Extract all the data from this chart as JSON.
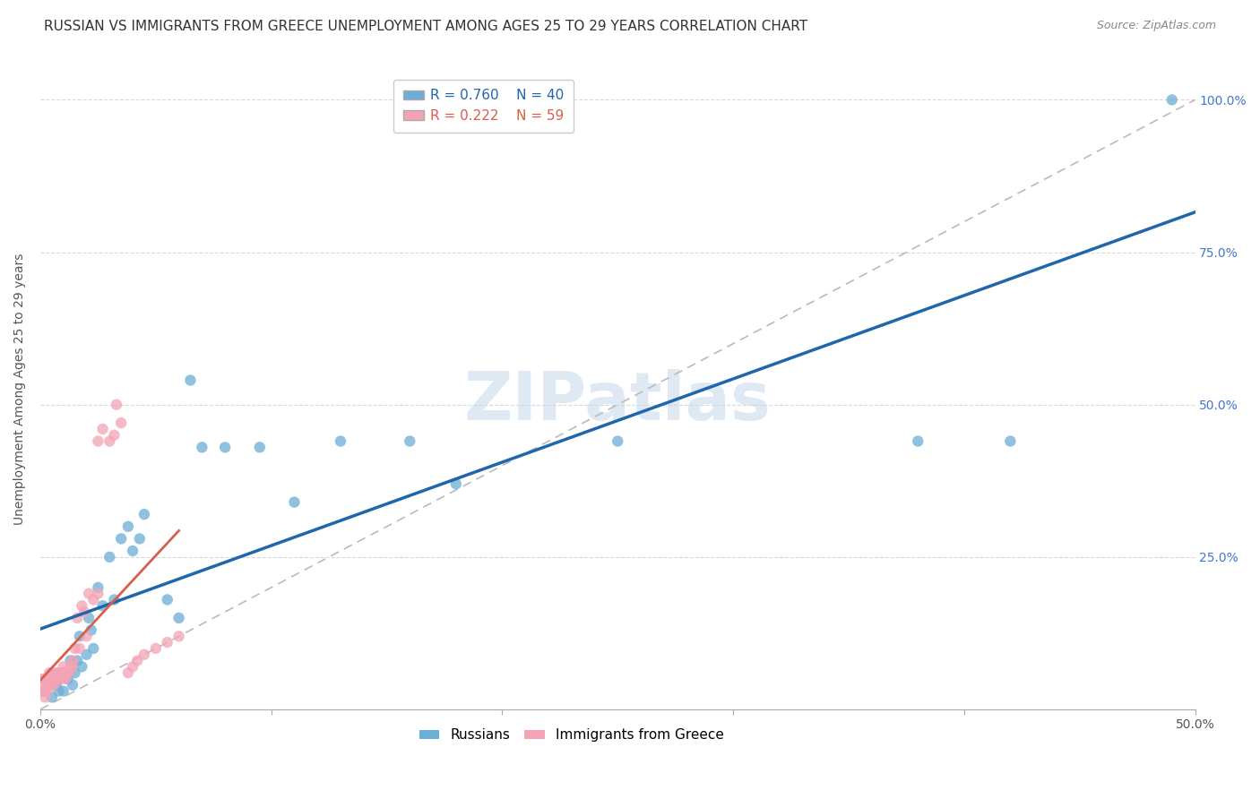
{
  "title": "RUSSIAN VS IMMIGRANTS FROM GREECE UNEMPLOYMENT AMONG AGES 25 TO 29 YEARS CORRELATION CHART",
  "source": "Source: ZipAtlas.com",
  "ylabel": "Unemployment Among Ages 25 to 29 years",
  "xlim": [
    0.0,
    0.5
  ],
  "ylim": [
    0.0,
    1.05
  ],
  "watermark": "ZIPatlas",
  "legend_r1": "R = 0.760",
  "legend_n1": "N = 40",
  "legend_r2": "R = 0.222",
  "legend_n2": "N = 59",
  "blue_color": "#6baed6",
  "pink_color": "#f4a3b5",
  "blue_line_color": "#2166ac",
  "pink_line_color": "#d6604d",
  "background_color": "#ffffff",
  "grid_color": "#d0d0d0",
  "russians_x": [
    0.003,
    0.005,
    0.007,
    0.008,
    0.01,
    0.01,
    0.012,
    0.013,
    0.014,
    0.015,
    0.016,
    0.017,
    0.018,
    0.02,
    0.021,
    0.022,
    0.023,
    0.025,
    0.027,
    0.03,
    0.032,
    0.035,
    0.038,
    0.04,
    0.043,
    0.045,
    0.055,
    0.06,
    0.065,
    0.07,
    0.08,
    0.095,
    0.11,
    0.13,
    0.16,
    0.18,
    0.25,
    0.38,
    0.42,
    0.49
  ],
  "russians_y": [
    0.05,
    0.02,
    0.04,
    0.03,
    0.06,
    0.03,
    0.05,
    0.08,
    0.04,
    0.06,
    0.08,
    0.12,
    0.07,
    0.09,
    0.15,
    0.13,
    0.1,
    0.2,
    0.17,
    0.25,
    0.18,
    0.28,
    0.3,
    0.26,
    0.28,
    0.32,
    0.18,
    0.15,
    0.54,
    0.43,
    0.43,
    0.43,
    0.34,
    0.44,
    0.44,
    0.37,
    0.44,
    0.44,
    0.44,
    1.0
  ],
  "greece_x": [
    0.001,
    0.001,
    0.001,
    0.001,
    0.002,
    0.002,
    0.002,
    0.002,
    0.003,
    0.003,
    0.003,
    0.004,
    0.004,
    0.005,
    0.005,
    0.005,
    0.006,
    0.006,
    0.006,
    0.007,
    0.007,
    0.007,
    0.008,
    0.008,
    0.008,
    0.009,
    0.009,
    0.01,
    0.01,
    0.01,
    0.011,
    0.011,
    0.012,
    0.012,
    0.013,
    0.014,
    0.014,
    0.015,
    0.016,
    0.017,
    0.018,
    0.019,
    0.02,
    0.021,
    0.023,
    0.025,
    0.025,
    0.027,
    0.03,
    0.032,
    0.033,
    0.035,
    0.038,
    0.04,
    0.042,
    0.045,
    0.05,
    0.055,
    0.06
  ],
  "greece_y": [
    0.03,
    0.04,
    0.03,
    0.05,
    0.03,
    0.02,
    0.05,
    0.03,
    0.03,
    0.05,
    0.04,
    0.06,
    0.04,
    0.04,
    0.05,
    0.06,
    0.04,
    0.05,
    0.05,
    0.05,
    0.06,
    0.05,
    0.06,
    0.05,
    0.06,
    0.05,
    0.06,
    0.06,
    0.06,
    0.07,
    0.06,
    0.05,
    0.06,
    0.06,
    0.07,
    0.08,
    0.07,
    0.1,
    0.15,
    0.1,
    0.17,
    0.16,
    0.12,
    0.19,
    0.18,
    0.19,
    0.44,
    0.46,
    0.44,
    0.45,
    0.5,
    0.47,
    0.06,
    0.07,
    0.08,
    0.09,
    0.1,
    0.11,
    0.12
  ],
  "title_fontsize": 11,
  "axis_fontsize": 10,
  "tick_fontsize": 10
}
